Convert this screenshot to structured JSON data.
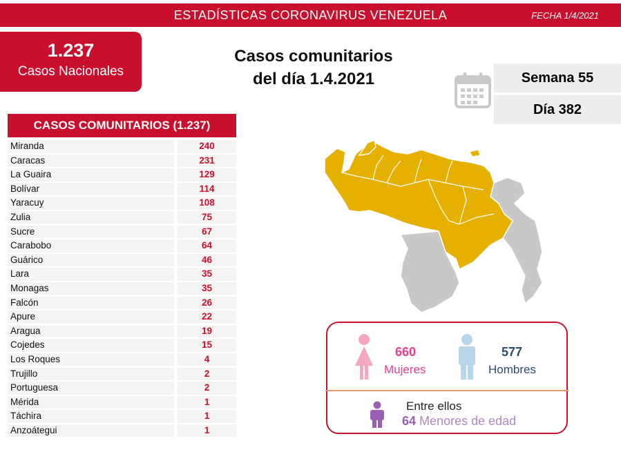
{
  "header": {
    "title": "ESTADÍSTICAS CORONAVIRUS VENEZUELA",
    "date": "FECHA 1/4/2021"
  },
  "total": {
    "number": "1.237",
    "label": "Casos Nacionales"
  },
  "headline": {
    "line1": "Casos comunitarios",
    "line2": "del día 1.4.2021"
  },
  "calendar": {
    "week": "Semana 55",
    "day": "Día 382"
  },
  "table": {
    "title": "CASOS COMUNITARIOS (1.237)",
    "rows": [
      {
        "name": "Miranda",
        "value": "240"
      },
      {
        "name": "Caracas",
        "value": "231"
      },
      {
        "name": "La Guaira",
        "value": "129"
      },
      {
        "name": "Bolívar",
        "value": "114"
      },
      {
        "name": "Yaracuy",
        "value": "108"
      },
      {
        "name": "Zulia",
        "value": "75"
      },
      {
        "name": "Sucre",
        "value": "67"
      },
      {
        "name": "Carabobo",
        "value": "64"
      },
      {
        "name": "Guárico",
        "value": "46"
      },
      {
        "name": "Lara",
        "value": "35"
      },
      {
        "name": "Monagas",
        "value": "35"
      },
      {
        "name": "Falcón",
        "value": "26"
      },
      {
        "name": "Apure",
        "value": "22"
      },
      {
        "name": "Aragua",
        "value": "19"
      },
      {
        "name": "Cojedes",
        "value": "15"
      },
      {
        "name": "Los Roques",
        "value": "4"
      },
      {
        "name": "Trujillo",
        "value": "2"
      },
      {
        "name": "Portuguesa",
        "value": "2"
      },
      {
        "name": "Mérida",
        "value": "1"
      },
      {
        "name": "Táchira",
        "value": "1"
      },
      {
        "name": "Anzoátegui",
        "value": "1"
      }
    ]
  },
  "gender": {
    "women_count": "660",
    "women_label": "Mujeres",
    "men_count": "577",
    "men_label": "Hombres",
    "among_label": "Entre ellos",
    "minors_count": "64",
    "minors_label": "Menores de edad"
  },
  "colors": {
    "brand_red": "#c8102e",
    "map_active": "#e6b000",
    "map_inactive": "#c8c8c8",
    "women": "#e83e8c",
    "men": "#2c4a6e",
    "minors": "#9a5fb0"
  },
  "icons": [
    "calendar-icon",
    "woman-icon",
    "man-icon",
    "child-icon",
    "venezuela-map"
  ]
}
